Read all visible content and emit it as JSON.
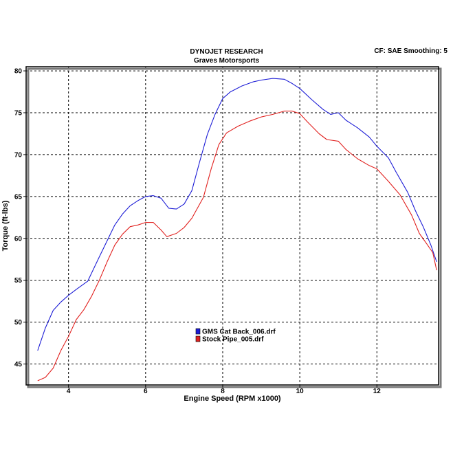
{
  "header": {
    "title": "DYNOJET RESEARCH",
    "subtitle": "Graves Motorsports",
    "cf_text": "CF: SAE  Smoothing: 5"
  },
  "chart_data": {
    "type": "line",
    "title": "DYNOJET RESEARCH",
    "subtitle": "Graves Motorsports",
    "xlabel": "Engine Speed (RPM x1000)",
    "ylabel": "Torque (ft-lbs)",
    "xlim": [
      2.9,
      13.6
    ],
    "ylim": [
      42.5,
      80.5
    ],
    "xticks": [
      4,
      6,
      8,
      10,
      12
    ],
    "yticks": [
      45,
      50,
      55,
      60,
      65,
      70,
      75,
      80
    ],
    "grid": true,
    "legend_position": "lower-center",
    "series": [
      {
        "name": "GMS Cat Back_006.drf",
        "color": "#1c1cd6",
        "points": [
          [
            3.2,
            46.6
          ],
          [
            3.4,
            49.3
          ],
          [
            3.6,
            51.4
          ],
          [
            3.8,
            52.4
          ],
          [
            4.0,
            53.2
          ],
          [
            4.2,
            53.9
          ],
          [
            4.5,
            54.9
          ],
          [
            4.8,
            57.8
          ],
          [
            5.0,
            59.7
          ],
          [
            5.2,
            61.6
          ],
          [
            5.4,
            62.9
          ],
          [
            5.6,
            63.9
          ],
          [
            5.8,
            64.5
          ],
          [
            6.0,
            65.0
          ],
          [
            6.2,
            65.1
          ],
          [
            6.4,
            64.8
          ],
          [
            6.6,
            63.6
          ],
          [
            6.8,
            63.5
          ],
          [
            7.0,
            64.1
          ],
          [
            7.2,
            65.7
          ],
          [
            7.4,
            69.1
          ],
          [
            7.6,
            72.4
          ],
          [
            7.8,
            74.8
          ],
          [
            8.0,
            76.7
          ],
          [
            8.2,
            77.5
          ],
          [
            8.5,
            78.2
          ],
          [
            8.8,
            78.7
          ],
          [
            9.0,
            78.9
          ],
          [
            9.3,
            79.1
          ],
          [
            9.6,
            79.0
          ],
          [
            9.8,
            78.5
          ],
          [
            10.0,
            77.9
          ],
          [
            10.3,
            76.6
          ],
          [
            10.6,
            75.4
          ],
          [
            10.8,
            74.8
          ],
          [
            11.0,
            75.0
          ],
          [
            11.2,
            74.1
          ],
          [
            11.5,
            73.2
          ],
          [
            11.8,
            72.1
          ],
          [
            12.0,
            71.0
          ],
          [
            12.3,
            69.6
          ],
          [
            12.5,
            67.9
          ],
          [
            12.8,
            65.5
          ],
          [
            13.0,
            63.3
          ],
          [
            13.2,
            61.4
          ],
          [
            13.4,
            59.2
          ],
          [
            13.55,
            57.2
          ]
        ]
      },
      {
        "name": "Stock Pipe_005.drf",
        "color": "#e1211f",
        "points": [
          [
            3.2,
            43.0
          ],
          [
            3.4,
            43.4
          ],
          [
            3.6,
            44.5
          ],
          [
            3.8,
            46.6
          ],
          [
            4.0,
            48.3
          ],
          [
            4.2,
            50.3
          ],
          [
            4.4,
            51.5
          ],
          [
            4.6,
            53.1
          ],
          [
            4.8,
            55.0
          ],
          [
            5.0,
            57.2
          ],
          [
            5.2,
            59.2
          ],
          [
            5.4,
            60.5
          ],
          [
            5.6,
            61.4
          ],
          [
            5.8,
            61.6
          ],
          [
            6.0,
            61.9
          ],
          [
            6.2,
            61.9
          ],
          [
            6.4,
            61.0
          ],
          [
            6.55,
            60.2
          ],
          [
            6.8,
            60.6
          ],
          [
            7.0,
            61.3
          ],
          [
            7.2,
            62.4
          ],
          [
            7.5,
            64.9
          ],
          [
            7.7,
            68.3
          ],
          [
            7.9,
            71.2
          ],
          [
            8.1,
            72.6
          ],
          [
            8.4,
            73.4
          ],
          [
            8.7,
            74.0
          ],
          [
            9.0,
            74.5
          ],
          [
            9.3,
            74.8
          ],
          [
            9.6,
            75.2
          ],
          [
            9.8,
            75.2
          ],
          [
            10.0,
            74.9
          ],
          [
            10.2,
            73.9
          ],
          [
            10.5,
            72.5
          ],
          [
            10.7,
            71.8
          ],
          [
            11.0,
            71.6
          ],
          [
            11.2,
            70.6
          ],
          [
            11.5,
            69.5
          ],
          [
            11.8,
            68.7
          ],
          [
            12.0,
            68.3
          ],
          [
            12.3,
            66.8
          ],
          [
            12.6,
            65.2
          ],
          [
            12.9,
            62.8
          ],
          [
            13.1,
            60.6
          ],
          [
            13.3,
            59.3
          ],
          [
            13.45,
            58.3
          ],
          [
            13.55,
            56.2
          ]
        ]
      }
    ]
  }
}
